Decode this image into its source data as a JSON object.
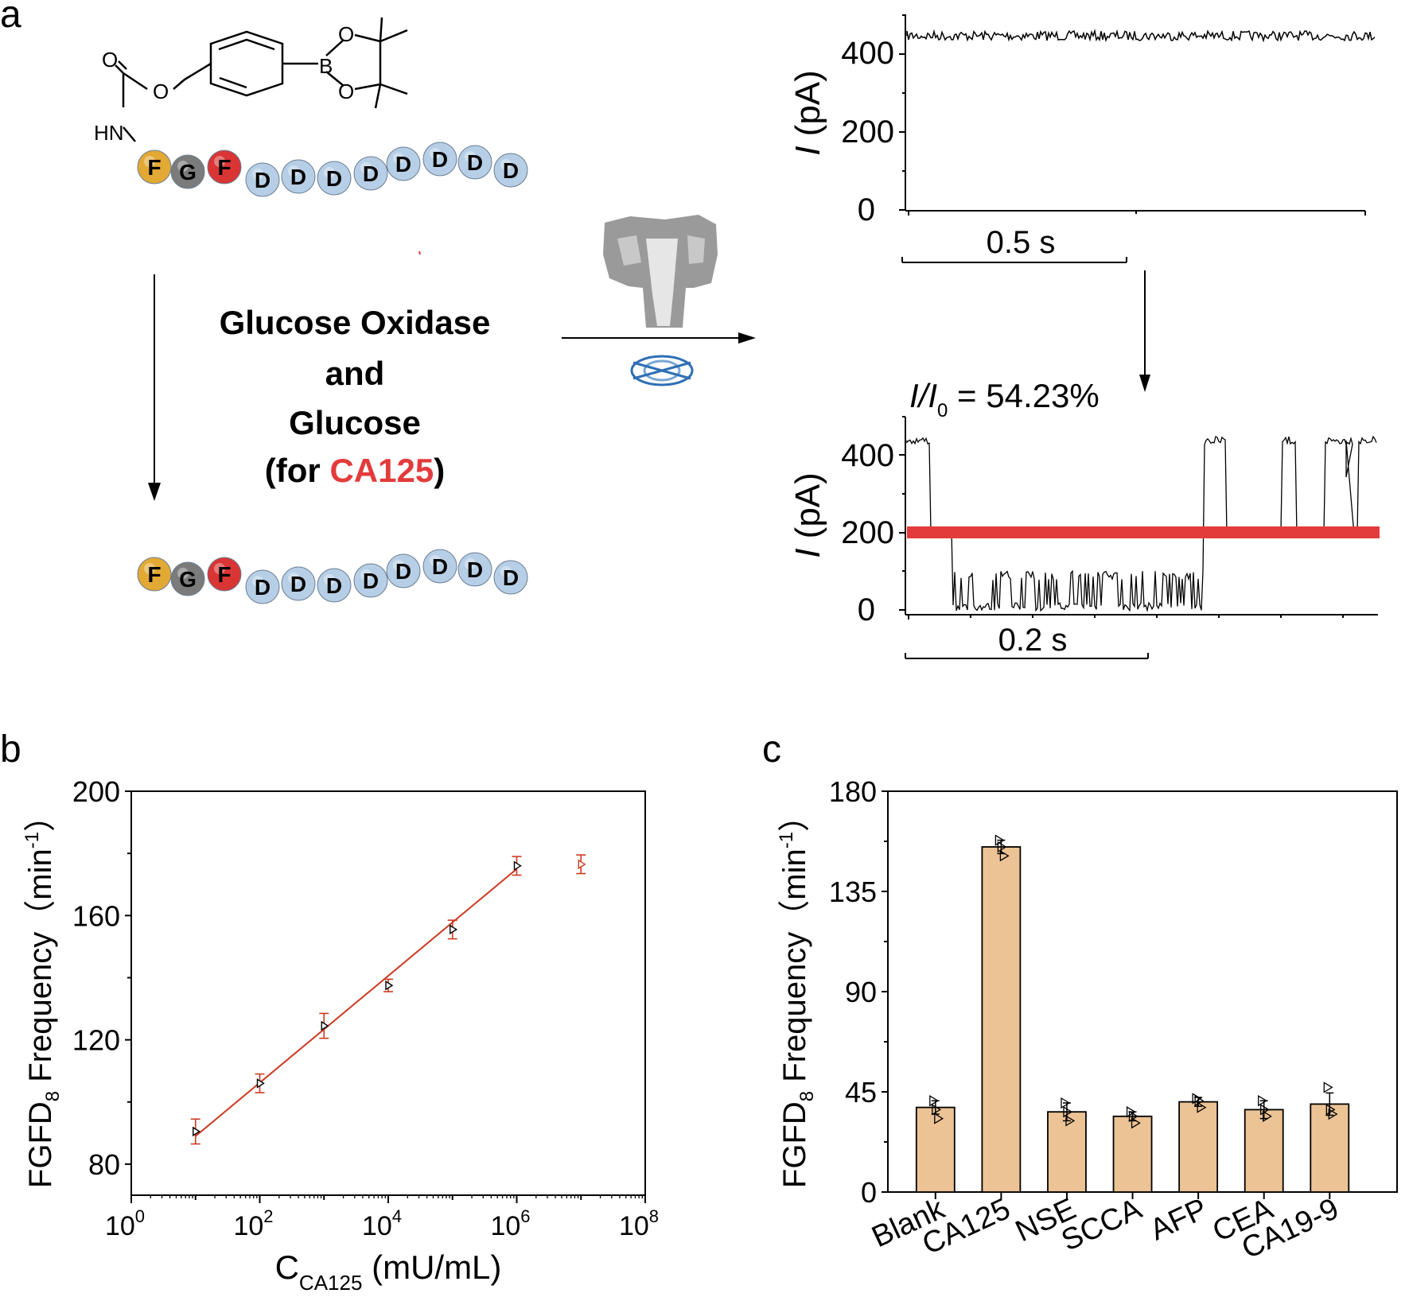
{
  "panel_labels": {
    "a": "a",
    "b": "b",
    "c": "c"
  },
  "scheme": {
    "mol_labels": {
      "o1": "O",
      "o2": "O",
      "o3": "O",
      "o4": "O",
      "b": "B",
      "hn": "HN"
    },
    "peptide": [
      "F",
      "G",
      "F",
      "D",
      "D",
      "D",
      "D",
      "D",
      "D",
      "D",
      "D"
    ],
    "condition_lines": [
      "Glucose Oxidase",
      "and",
      "Glucose"
    ],
    "condition_for": "(for ",
    "condition_target": "CA125",
    "condition_close": ")",
    "colors": {
      "F_yellow": "#e3a935",
      "G_grey": "#7b7b7b",
      "F_red": "#d93535",
      "D_blue": "#b7cfe6",
      "highlight": "#e33b3b"
    }
  },
  "trace_top": {
    "ylabel_italic": "I",
    "ylabel_rest": " (pA)",
    "yticks": [
      "400",
      "200",
      "0"
    ],
    "scale_label": "0.5 s"
  },
  "trace_bottom": {
    "ratio_label_i": "I/I",
    "ratio_label_sub": "0",
    "ratio_label_rest": " = 54.23%",
    "ylabel_italic": "I",
    "ylabel_rest": " (pA)",
    "yticks": [
      "400",
      "200",
      "0"
    ],
    "scale_label": "0.2 s"
  },
  "chart_data": [
    {
      "type": "scatter",
      "panel": "b",
      "xscale": "log",
      "xlim": [
        1,
        100000000
      ],
      "ylim": [
        70,
        200
      ],
      "xtick_base": "10",
      "xtick_exponents": [
        "0",
        "2",
        "4",
        "6",
        "8"
      ],
      "ytick_labels": [
        "80",
        "120",
        "160",
        "200"
      ],
      "xlabel_main": "C",
      "xlabel_sub": "CA125",
      "xlabel_rest": " (mU/mL)",
      "ylabel_main": "FGFD",
      "ylabel_sub": "8",
      "ylabel_rest": " Frequency（min",
      "ylabel_sup": "-1",
      "ylabel_close": "）",
      "x": [
        10,
        100,
        1000,
        10000,
        100000,
        1000000,
        10000000
      ],
      "y": [
        90.5,
        106,
        124.5,
        137.5,
        155.5,
        176,
        176.5
      ],
      "error": [
        4,
        3,
        4,
        2,
        3,
        3,
        3
      ],
      "fit": {
        "x": [
          10,
          1000000
        ],
        "y": [
          89,
          175
        ]
      },
      "series_color": "#cc3a22"
    },
    {
      "type": "bar",
      "panel": "c",
      "categories": [
        "Blank",
        "CA125",
        "NSE",
        "SCCA",
        "AFP",
        "CEA",
        "CA19-9"
      ],
      "values": [
        38,
        155,
        36,
        34,
        40.5,
        37,
        39.5
      ],
      "error": [
        3,
        3,
        4,
        2,
        2,
        4,
        5
      ],
      "points": [
        [
          41,
          37,
          33
        ],
        [
          158,
          155,
          151
        ],
        [
          40,
          36,
          32
        ],
        [
          36,
          34,
          31
        ],
        [
          42,
          41,
          38
        ],
        [
          41,
          37,
          34
        ],
        [
          47,
          37,
          35
        ]
      ],
      "ylim": [
        0,
        180
      ],
      "ytick_labels": [
        "0",
        "45",
        "90",
        "135",
        "180"
      ],
      "ylabel_main": "FGFD",
      "ylabel_sub": "8",
      "ylabel_rest": " Frequency（min",
      "ylabel_sup": "-1",
      "ylabel_close": "）",
      "bar_color": "#ecc395"
    }
  ]
}
